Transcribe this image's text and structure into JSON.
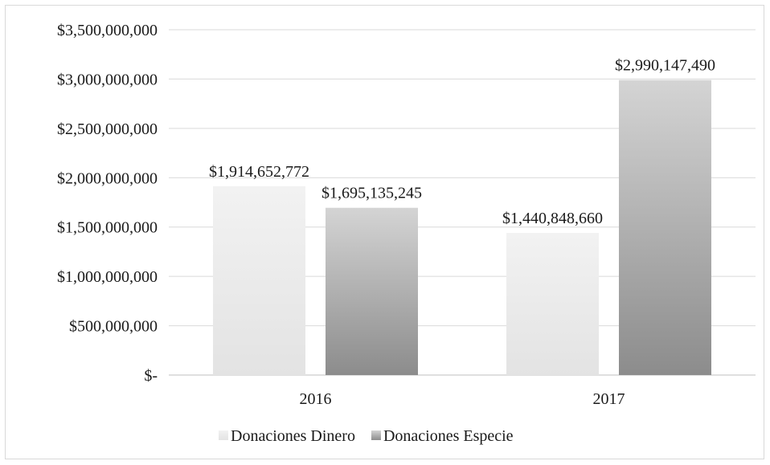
{
  "chart_data": {
    "type": "bar",
    "title": "",
    "xlabel": "",
    "ylabel": "",
    "categories": [
      "2016",
      "2017"
    ],
    "series": [
      {
        "name": "Donaciones Dinero",
        "values": [
          1914652772,
          1440848660
        ],
        "value_labels": [
          "$1,914,652,772",
          "$1,440,848,660"
        ],
        "color_top": "#f2f2f2",
        "color_bottom": "#e3e3e3"
      },
      {
        "name": "Donaciones Especie",
        "values": [
          1695135245,
          2990147490
        ],
        "value_labels": [
          "$1,695,135,245",
          "$2,990,147,490"
        ],
        "color_top": "#d4d4d4",
        "color_bottom": "#8c8c8c"
      }
    ],
    "ylim": [
      0,
      3500000000
    ],
    "yticks": [
      0,
      500000000,
      1000000000,
      1500000000,
      2000000000,
      2500000000,
      3000000000,
      3500000000
    ],
    "ytick_labels": [
      "$-",
      "$500,000,000",
      "$1,000,000,000",
      "$1,500,000,000",
      "$2,000,000,000",
      "$2,500,000,000",
      "$3,000,000,000",
      "$3,500,000,000"
    ],
    "grid": true,
    "legend_position": "bottom"
  },
  "style": {
    "gridline_color": "#d9d9d9",
    "axis_color": "#bfbfbf"
  }
}
